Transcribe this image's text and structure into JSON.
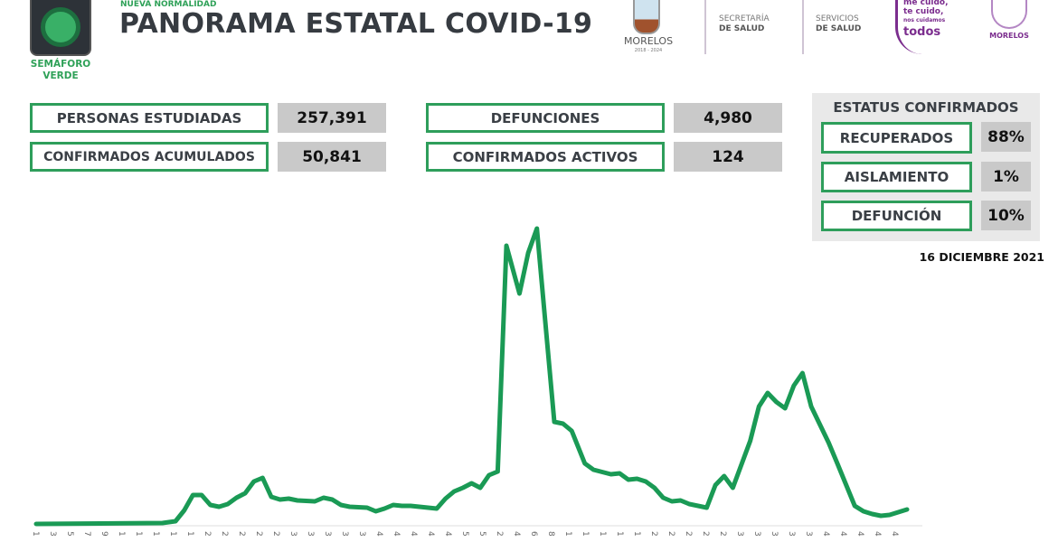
{
  "header": {
    "kicker": "NUEVA NORMALIDAD",
    "title": "PANORAMA ESTATAL COVID-19",
    "semaforo_label_1": "SEMÁFORO",
    "semaforo_label_2": "VERDE",
    "semaforo_color": "#39b067",
    "logos": {
      "morelos_name": "MORELOS",
      "morelos_years": "2018 - 2024",
      "secretaria_1": "SECRETARÍA",
      "secretaria_2": "DE SALUD",
      "servicios_1": "SERVICIOS",
      "servicios_2": "DE SALUD",
      "campaign_1": "me cuido,",
      "campaign_2": "te cuido,",
      "campaign_3": "nos cuidamos",
      "campaign_4": "todos",
      "morelos2_name": "MORELOS"
    }
  },
  "stats": [
    {
      "label": "PERSONAS ESTUDIADAS",
      "value": "257,391"
    },
    {
      "label": "CONFIRMADOS ACUMULADOS",
      "value": "50,841"
    },
    {
      "label": "DEFUNCIONES",
      "value": "4,980"
    },
    {
      "label": "CONFIRMADOS ACTIVOS",
      "value": "124"
    }
  ],
  "status": {
    "title": "ESTATUS CONFIRMADOS",
    "rows": [
      {
        "label": "RECUPERADOS",
        "value": "88%"
      },
      {
        "label": "AISLAMIENTO",
        "value": "1%"
      },
      {
        "label": "DEFUNCIÓN",
        "value": "10%"
      }
    ]
  },
  "date": "16 DICIEMBRE 2021",
  "colors": {
    "accent": "#2e9e5b",
    "line": "#1a9a55",
    "value_bg": "#c9c9c9",
    "panel_bg": "#e9e9e9"
  },
  "chart_data": {
    "type": "line",
    "title": "",
    "xlabel": "",
    "ylabel": "",
    "y_axis_visible": false,
    "grid": false,
    "x_tick_labels": [
      "1",
      "3",
      "5",
      "7",
      "9",
      "1",
      "1",
      "1",
      "1",
      "1",
      "2",
      "2",
      "2",
      "2",
      "2",
      "3",
      "3",
      "3",
      "3",
      "3",
      "4",
      "4",
      "4",
      "4",
      "4",
      "5",
      "5",
      "2",
      "4",
      "6",
      "8",
      "1",
      "1",
      "1",
      "1",
      "1",
      "2",
      "2",
      "2",
      "2",
      "2",
      "3",
      "3",
      "3",
      "3",
      "3",
      "4",
      "4",
      "4",
      "4",
      "4"
    ],
    "x_range": [
      0,
      100
    ],
    "y_range": [
      0,
      330
    ],
    "series": [
      {
        "color": "#1a9a55",
        "points": [
          [
            0,
            0
          ],
          [
            14.5,
            1
          ],
          [
            16,
            3
          ],
          [
            17,
            15
          ],
          [
            18,
            32
          ],
          [
            19,
            32
          ],
          [
            20,
            21
          ],
          [
            21,
            19
          ],
          [
            22,
            22
          ],
          [
            23,
            29
          ],
          [
            24,
            34
          ],
          [
            25,
            47
          ],
          [
            26,
            51
          ],
          [
            27,
            30
          ],
          [
            28,
            27
          ],
          [
            29,
            28
          ],
          [
            30,
            26
          ],
          [
            32,
            25
          ],
          [
            33,
            29
          ],
          [
            34,
            27
          ],
          [
            35,
            21
          ],
          [
            36,
            19
          ],
          [
            38,
            18
          ],
          [
            39,
            14
          ],
          [
            40,
            17
          ],
          [
            41,
            21
          ],
          [
            42,
            20
          ],
          [
            43,
            20
          ],
          [
            44,
            19
          ],
          [
            46,
            17
          ],
          [
            47,
            28
          ],
          [
            48,
            36
          ],
          [
            49,
            40
          ],
          [
            50,
            45
          ],
          [
            51,
            40
          ],
          [
            52,
            54
          ],
          [
            53,
            58
          ],
          [
            54,
            308
          ],
          [
            55.5,
            255
          ],
          [
            56.5,
            300
          ],
          [
            57.5,
            327
          ],
          [
            59.5,
            113
          ],
          [
            60.5,
            111
          ],
          [
            61.5,
            103
          ],
          [
            63,
            67
          ],
          [
            64,
            60
          ],
          [
            66,
            55
          ],
          [
            67,
            56
          ],
          [
            68,
            49
          ],
          [
            69,
            50
          ],
          [
            70,
            47
          ],
          [
            71,
            40
          ],
          [
            72,
            29
          ],
          [
            73,
            25
          ],
          [
            74,
            26
          ],
          [
            75,
            22
          ],
          [
            77,
            18
          ],
          [
            78,
            43
          ],
          [
            79,
            53
          ],
          [
            80,
            40
          ],
          [
            82,
            92
          ],
          [
            83,
            130
          ],
          [
            84,
            145
          ],
          [
            85,
            135
          ],
          [
            86,
            128
          ],
          [
            87,
            153
          ],
          [
            88,
            167
          ],
          [
            89,
            130
          ],
          [
            90,
            110
          ],
          [
            91,
            90
          ],
          [
            92,
            67
          ],
          [
            94,
            20
          ],
          [
            95,
            14
          ],
          [
            96,
            11
          ],
          [
            97,
            9
          ],
          [
            98,
            10
          ],
          [
            99,
            13
          ],
          [
            100,
            16
          ]
        ]
      }
    ]
  }
}
